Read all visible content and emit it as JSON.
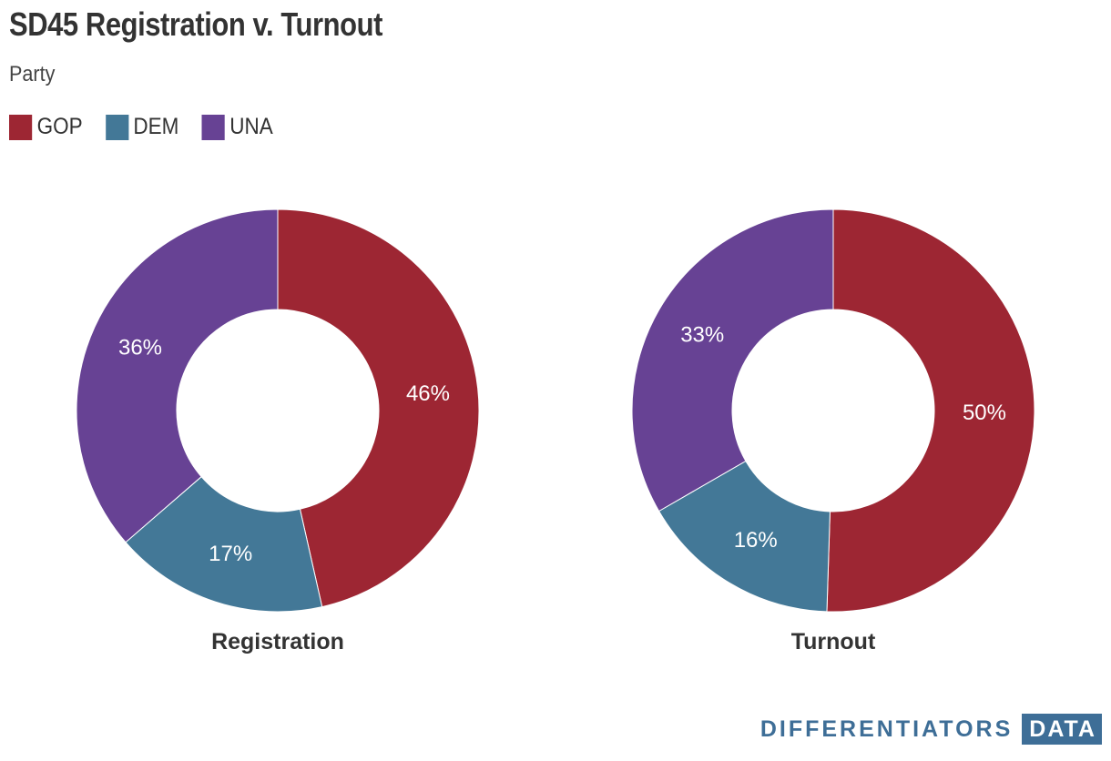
{
  "title": "SD45 Registration v. Turnout",
  "subtitle": "Party",
  "legend": [
    {
      "label": "GOP",
      "color": "#9d2633"
    },
    {
      "label": "DEM",
      "color": "#437897"
    },
    {
      "label": "UNA",
      "color": "#674294"
    }
  ],
  "brand": {
    "text": "DIFFERENTIATORS",
    "box_text": "DATA"
  },
  "chart_data": [
    {
      "type": "pie",
      "donut": true,
      "title": "Registration",
      "slices": [
        {
          "label": "GOP",
          "value": 46,
          "display": "46%",
          "color": "#9d2633"
        },
        {
          "label": "DEM",
          "value": 17,
          "display": "17%",
          "color": "#437897"
        },
        {
          "label": "UNA",
          "value": 36,
          "display": "36%",
          "color": "#674294"
        }
      ]
    },
    {
      "type": "pie",
      "donut": true,
      "title": "Turnout",
      "slices": [
        {
          "label": "GOP",
          "value": 50,
          "display": "50%",
          "color": "#9d2633"
        },
        {
          "label": "DEM",
          "value": 16,
          "display": "16%",
          "color": "#437897"
        },
        {
          "label": "UNA",
          "value": 33,
          "display": "33%",
          "color": "#674294"
        }
      ]
    }
  ]
}
